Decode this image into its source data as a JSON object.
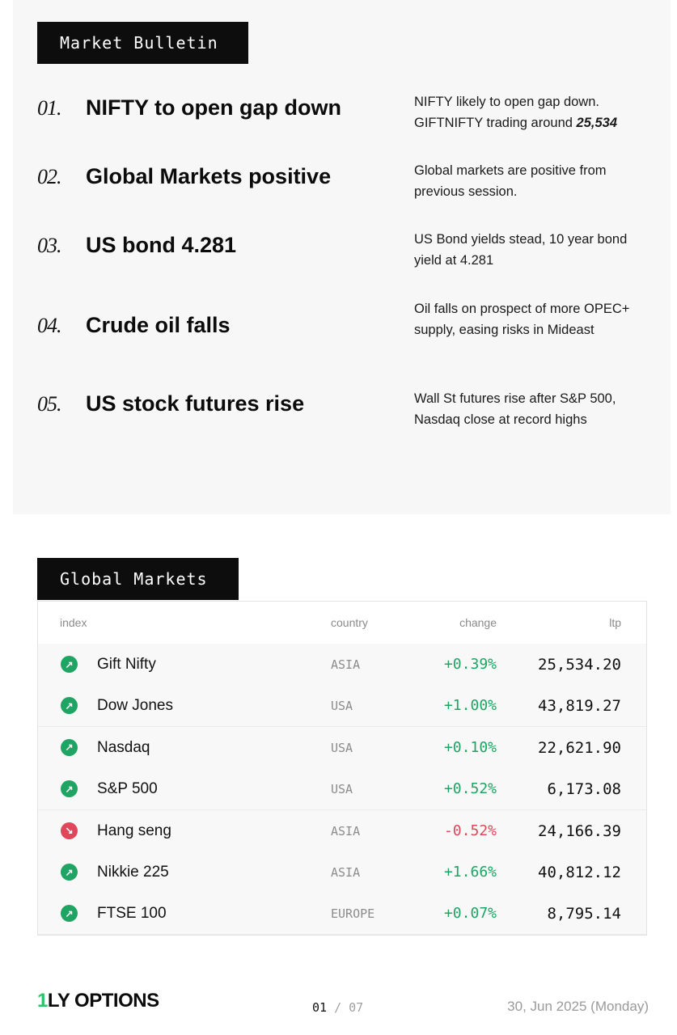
{
  "bulletin": {
    "title": "Market Bulletin",
    "items": [
      {
        "num": "01.",
        "headline": "NIFTY to open gap down",
        "desc_lines": [
          "NIFTY likely to open gap down.",
          "GIFTNIFTY trading around "
        ],
        "desc_bold": "25,534"
      },
      {
        "num": "02.",
        "headline": "Global Markets positive",
        "desc": "Global markets are positive from previous session."
      },
      {
        "num": "03.",
        "headline": "US bond 4.281",
        "desc": "US Bond yields stead, 10 year bond yield at 4.281"
      },
      {
        "num": "04.",
        "headline": "Crude oil falls",
        "desc": "Oil falls on prospect of more OPEC+ supply, easing risks in Mideast"
      },
      {
        "num": "05.",
        "headline": "US stock futures rise",
        "desc": "Wall St futures rise after S&P 500, Nasdaq close at record highs"
      }
    ]
  },
  "global": {
    "title": "Global Markets",
    "columns": {
      "index": "index",
      "country": "country",
      "change": "change",
      "ltp": "ltp"
    },
    "rows": [
      {
        "index": "Gift Nifty",
        "country": "ASIA",
        "change": "+0.39%",
        "ltp": "25,534.20",
        "dir": "up"
      },
      {
        "index": "Dow Jones",
        "country": "USA",
        "change": "+1.00%",
        "ltp": "43,819.27",
        "dir": "up"
      },
      {
        "index": "Nasdaq",
        "country": "USA",
        "change": "+0.10%",
        "ltp": "22,621.90",
        "dir": "up"
      },
      {
        "index": "S&P 500",
        "country": "USA",
        "change": "+0.52%",
        "ltp": "6,173.08",
        "dir": "up"
      },
      {
        "index": "Hang seng",
        "country": "ASIA",
        "change": "-0.52%",
        "ltp": "24,166.39",
        "dir": "down"
      },
      {
        "index": "Nikkie 225",
        "country": "ASIA",
        "change": "+1.66%",
        "ltp": "40,812.12",
        "dir": "up"
      },
      {
        "index": "FTSE 100",
        "country": "EUROPE",
        "change": "+0.07%",
        "ltp": "8,795.14",
        "dir": "up"
      }
    ],
    "up_icon": "arrow-up-right-icon",
    "down_icon": "arrow-down-right-icon",
    "colors": {
      "positive": "#1fa463",
      "negative": "#e0475b"
    }
  },
  "footer": {
    "logo_mark": "1",
    "logo_text": "LY OPTIONS",
    "page_current": "01",
    "page_sep": "/",
    "page_total": "07",
    "date": "30, Jun 2025 (Monday)"
  }
}
